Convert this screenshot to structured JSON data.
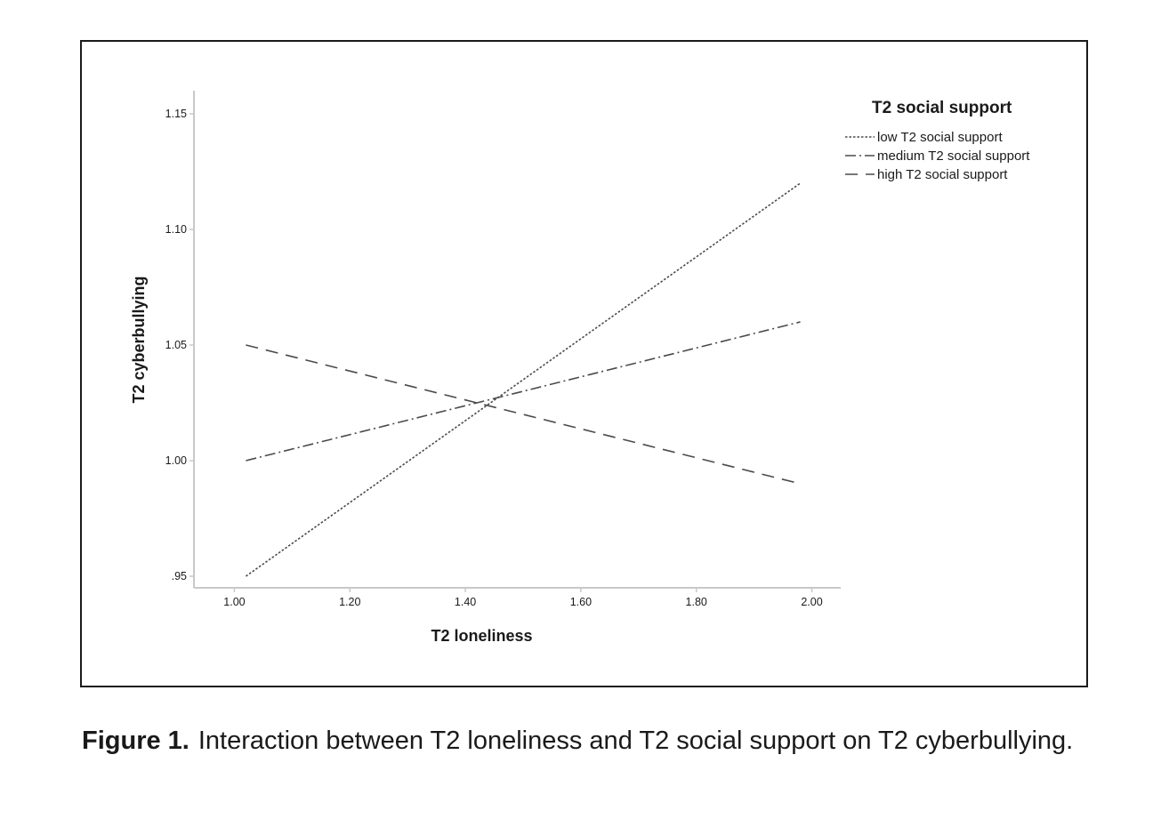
{
  "figure": {
    "label": "Figure 1.",
    "caption": "Interaction between T2 loneliness and T2 social support on T2 cyberbullying."
  },
  "chart_data": {
    "type": "line",
    "xlabel": "T2 loneliness",
    "ylabel": "T2 cyberbullying",
    "xlim": [
      0.93,
      2.05
    ],
    "ylim": [
      0.945,
      1.16
    ],
    "xticks": [
      "1.00",
      "1.20",
      "1.40",
      "1.60",
      "1.80",
      "2.00"
    ],
    "xtick_values": [
      1.0,
      1.2,
      1.4,
      1.6,
      1.8,
      2.0
    ],
    "yticks": [
      ".95",
      "1.00",
      "1.05",
      "1.10",
      "1.15"
    ],
    "ytick_values": [
      0.95,
      1.0,
      1.05,
      1.1,
      1.15
    ],
    "grid": false,
    "legend_title": "T2 social support",
    "legend_position": "top-right",
    "series": [
      {
        "name": "low T2 social support",
        "style": "dotted",
        "x": [
          1.02,
          1.98
        ],
        "y": [
          0.95,
          1.12
        ]
      },
      {
        "name": "medium T2 social support",
        "style": "dash-dot",
        "x": [
          1.02,
          1.98
        ],
        "y": [
          1.0,
          1.06
        ]
      },
      {
        "name": "high T2 social support",
        "style": "dashed",
        "x": [
          1.02,
          1.98
        ],
        "y": [
          1.05,
          0.99
        ]
      }
    ],
    "colors": {
      "line": "#4a4a4a",
      "axis": "#c8c8c8"
    }
  }
}
